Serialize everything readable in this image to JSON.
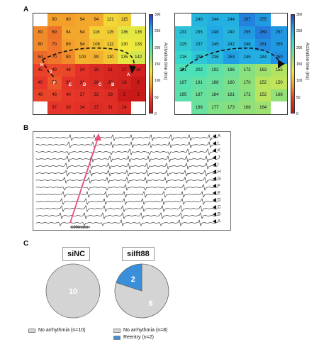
{
  "panels": {
    "a": "A",
    "b": "B",
    "c": "C"
  },
  "map_left": {
    "rows": [
      [
        "",
        "90",
        "90",
        "94",
        "94",
        "121",
        "115",
        ""
      ],
      [
        "80",
        "69",
        "94",
        "94",
        "116",
        "115",
        "136",
        "135"
      ],
      [
        "80",
        "70",
        "89",
        "94",
        "108",
        "112",
        "130",
        "133"
      ],
      [
        "64",
        "70",
        "80",
        "100",
        "99",
        "110",
        "135",
        "142"
      ],
      [
        "45",
        "49",
        "48",
        "34",
        "26",
        "21",
        "17",
        "16"
      ],
      [
        "40",
        "55",
        "36",
        "31",
        "28",
        "20",
        "16",
        "6"
      ],
      [
        "46",
        "46",
        "40",
        "37",
        "32",
        "29",
        "5",
        "5"
      ],
      [
        "",
        "37",
        "38",
        "34",
        "27",
        "31",
        "24",
        ""
      ]
    ],
    "electrode_labels": [
      "H",
      "G",
      "F",
      "E",
      "D",
      "C",
      "B",
      "A"
    ]
  },
  "map_right": {
    "rows": [
      [
        "",
        "240",
        "244",
        "244",
        "267",
        "255",
        ""
      ],
      [
        "231",
        "235",
        "248",
        "240",
        "255",
        "269",
        "257"
      ],
      [
        "225",
        "237",
        "245",
        "242",
        "248",
        "261",
        "255"
      ],
      [
        "216",
        "228",
        "236",
        "253",
        "245",
        "244",
        "260"
      ],
      [
        "201",
        "202",
        "192",
        "186",
        "172",
        "163",
        "155"
      ],
      [
        "197",
        "191",
        "188",
        "180",
        "170",
        "152",
        "150"
      ],
      [
        "195",
        "187",
        "184",
        "181",
        "172",
        "152",
        "168"
      ],
      [
        "",
        "188",
        "177",
        "173",
        "168",
        "164",
        ""
      ]
    ]
  },
  "colorbar": {
    "label": "Activation time (ms)",
    "ticks": [
      "300",
      "250",
      "200",
      "150",
      "100",
      "50",
      "0"
    ]
  },
  "traces": {
    "labels": [
      "A",
      "L",
      "K",
      "J",
      "I",
      "H",
      "G",
      "F",
      "E",
      "D",
      "C",
      "B",
      "A"
    ],
    "scale_label": "100msec"
  },
  "pies": [
    {
      "title": "siNC",
      "slices": [
        {
          "value": 10,
          "label": "10",
          "color": "#d4d4d4"
        }
      ],
      "legend": [
        {
          "label": "No arrhythmia (n=10)",
          "color": "#d4d4d4"
        }
      ]
    },
    {
      "title": "siIft88",
      "slices": [
        {
          "value": 8,
          "label": "8",
          "color": "#d4d4d4"
        },
        {
          "value": 2,
          "label": "2",
          "color": "#3a8fdb"
        }
      ],
      "legend": [
        {
          "label": "No arrhythmia (n=8)",
          "color": "#d4d4d4"
        },
        {
          "label": "Reentry (n=2)",
          "color": "#3a8fdb"
        }
      ]
    }
  ],
  "colors": {
    "reentry": "#3a8fdb",
    "no_arrhythmia": "#d4d4d4",
    "arrow": "#e8507a"
  }
}
